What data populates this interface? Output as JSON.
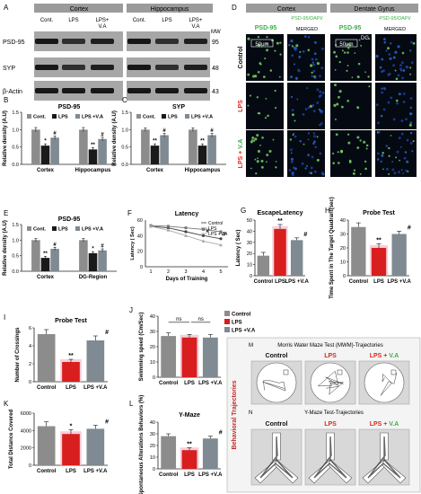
{
  "colors": {
    "control": "#8c8c8c",
    "lps": "#d81e1e",
    "lpsva": "#7f8a92",
    "dark": "#1a1a1a",
    "green": "#3fae49",
    "red": "#e0251b",
    "blot_bg": "#a7a7a7",
    "panelD_bg": "#050a12",
    "mwm_panel": "#d8d8d8"
  },
  "panelA": {
    "letter": "A",
    "groups": [
      "Cortex",
      "Hippocampus"
    ],
    "lanes": [
      "Cont.",
      "LPS",
      "LPS+\nV.A",
      "Cont.",
      "LPS",
      "LPS+\nV.A"
    ],
    "mw_label": "MW",
    "rows": [
      {
        "name": "PSD-95",
        "mw": "95"
      },
      {
        "name": "SYP",
        "mw": "48"
      },
      {
        "name": "β-Actin",
        "mw": "43"
      }
    ]
  },
  "panelD": {
    "letter": "D",
    "groups": [
      "Cortex",
      "Dentate Gyrus"
    ],
    "col_labels": [
      "PSD-95",
      "PSD-95/DAPI/",
      "MERGED"
    ],
    "row_labels": [
      "Control",
      "LPS",
      "LPS + V.A"
    ],
    "scale": "50μm",
    "dg_tag": "DG"
  },
  "charts": [
    {
      "id": "B",
      "letter": "B",
      "chart_data": {
        "type": "bar",
        "title": "PSD-95",
        "ylabel": "Relative density (A.U)",
        "ylim": [
          0,
          1.5
        ],
        "yticks": [
          "0.0",
          "0.5",
          "1.0",
          "1.5"
        ],
        "categories": [
          "Cortex",
          "Hippocampus"
        ],
        "legend": [
          "Cont.",
          "LPS",
          "LPS +V.A"
        ],
        "series": [
          {
            "name": "Cont.",
            "values": [
              1.0,
              1.0
            ],
            "err": [
              0.06,
              0.06
            ]
          },
          {
            "name": "LPS",
            "values": [
              0.54,
              0.43
            ],
            "err": [
              0.05,
              0.05
            ]
          },
          {
            "name": "LPS +V.A",
            "values": [
              0.77,
              0.73
            ],
            "err": [
              0.05,
              0.05
            ]
          }
        ],
        "marks": [
          [
            "",
            "*",
            "#"
          ],
          [
            "",
            "**",
            "#"
          ]
        ]
      }
    },
    {
      "id": "C",
      "letter": "C",
      "chart_data": {
        "type": "bar",
        "title": "SYP",
        "ylabel": "Relative density (A.U)",
        "ylim": [
          0,
          1.5
        ],
        "yticks": [
          "0.0",
          "0.5",
          "1.0",
          "1.5"
        ],
        "categories": [
          "Cortex",
          "Hippocampus"
        ],
        "legend": [
          "Cont.",
          "LPS",
          "LPS +V.A"
        ],
        "series": [
          {
            "name": "Cont.",
            "values": [
              1.0,
              1.0
            ],
            "err": [
              0.05,
              0.05
            ]
          },
          {
            "name": "LPS",
            "values": [
              0.54,
              0.54
            ],
            "err": [
              0.05,
              0.05
            ]
          },
          {
            "name": "LPS +V.A",
            "values": [
              0.84,
              0.84
            ],
            "err": [
              0.05,
              0.05
            ]
          }
        ],
        "marks": [
          [
            "",
            "**",
            "#"
          ],
          [
            "",
            "**",
            "#"
          ]
        ]
      }
    },
    {
      "id": "E",
      "letter": "E",
      "chart_data": {
        "type": "bar",
        "title": "PSD-95",
        "ylabel": "Relative density (A.U)",
        "ylim": [
          0,
          1.5
        ],
        "yticks": [
          "0.0",
          "0.5",
          "1.0",
          "1.5"
        ],
        "categories": [
          "Cortex",
          "DG-Region"
        ],
        "legend": [
          "Cont.",
          "LPS",
          "LPS +V.A"
        ],
        "series": [
          {
            "name": "Cont.",
            "values": [
              1.0,
              1.0
            ],
            "err": [
              0.05,
              0.05
            ]
          },
          {
            "name": "LPS",
            "values": [
              0.43,
              0.58
            ],
            "err": [
              0.05,
              0.05
            ]
          },
          {
            "name": "LPS +V.A",
            "values": [
              0.72,
              0.67
            ],
            "err": [
              0.05,
              0.05
            ]
          }
        ],
        "marks": [
          [
            "",
            "**",
            "#"
          ],
          [
            "",
            "*",
            "#"
          ]
        ]
      }
    },
    {
      "id": "G",
      "letter": "G",
      "chart_data": {
        "type": "bar",
        "title": "EscapeLatency",
        "ylabel": "Latency ( Sec)",
        "ylim": [
          0,
          50
        ],
        "yticks": [
          "0",
          "10",
          "20",
          "30",
          "40",
          "50"
        ],
        "categories": [
          "Control",
          "LPS",
          "LPS +V.A"
        ],
        "values": [
          18,
          42,
          32
        ],
        "err": [
          3,
          4,
          2
        ],
        "marks": [
          "",
          "**",
          "#"
        ]
      }
    },
    {
      "id": "H",
      "letter": "H",
      "chart_data": {
        "type": "bar",
        "title": "Probe Test",
        "ylabel": "Time Spent in The Target Quadrant(sec)",
        "ylim": [
          0,
          40
        ],
        "yticks": [
          "0",
          "10",
          "20",
          "30",
          "40"
        ],
        "categories": [
          "Control",
          "LPS",
          "LPS +V.A"
        ],
        "values": [
          35,
          20,
          30
        ],
        "err": [
          3,
          3,
          2
        ],
        "marks": [
          "",
          "**",
          "#"
        ]
      }
    },
    {
      "id": "I",
      "letter": "I",
      "chart_data": {
        "type": "bar",
        "title": "Probe Test",
        "ylabel": "Number of Crossings",
        "ylim": [
          0,
          6
        ],
        "yticks": [
          "0",
          "2",
          "4",
          "6"
        ],
        "categories": [
          "Control",
          "LPS",
          "LPS +V.A"
        ],
        "values": [
          5.3,
          2.2,
          4.6
        ],
        "err": [
          0.5,
          0.3,
          0.5
        ],
        "marks": [
          "",
          "**",
          "#"
        ]
      }
    },
    {
      "id": "J",
      "letter": "J",
      "chart_data": {
        "type": "bar",
        "title": "",
        "ylabel": "Swimming speed (Cm/Sec)",
        "ylim": [
          0,
          40
        ],
        "yticks": [
          "0",
          "10",
          "20",
          "30",
          "40"
        ],
        "categories": [
          "Control",
          "LPS",
          "LPS +V.A"
        ],
        "values": [
          27,
          26,
          26
        ],
        "err": [
          2,
          2,
          2
        ],
        "legend": [
          "Control",
          "LPS",
          "LPS +V.A"
        ],
        "ns": [
          "ns",
          "ns"
        ]
      }
    },
    {
      "id": "K",
      "letter": "K",
      "chart_data": {
        "type": "bar",
        "title": "",
        "ylabel": "Total Distance Covered",
        "ylim": [
          0,
          6000
        ],
        "yticks": [
          "0",
          "2000",
          "4000",
          "6000"
        ],
        "categories": [
          "Control",
          "LPS",
          "LPS +V.A"
        ],
        "values": [
          4500,
          3600,
          4200
        ],
        "err": [
          500,
          500,
          400
        ],
        "marks": [
          "",
          "*",
          "#"
        ]
      }
    },
    {
      "id": "L",
      "letter": "L",
      "chart_data": {
        "type": "bar",
        "title": "Y-Maze",
        "ylabel": "Spontaneous Alterations Behaviors (%)",
        "ylim": [
          0,
          40
        ],
        "yticks": [
          "0",
          "10",
          "20",
          "30",
          "40"
        ],
        "categories": [
          "Control",
          "LPS",
          "LPS +V.A"
        ],
        "values": [
          28,
          16,
          26
        ],
        "err": [
          2,
          2,
          2
        ],
        "marks": [
          "",
          "**",
          "#"
        ]
      }
    }
  ],
  "panelF": {
    "letter": "F",
    "chart_data": {
      "type": "line",
      "title": "Latency",
      "xlabel": "Days of Training",
      "ylabel": "Latency ( Sec)",
      "ylim": [
        0,
        60
      ],
      "yticks": [
        "0",
        "20",
        "40",
        "60"
      ],
      "x": [
        1,
        2,
        3,
        4,
        5
      ],
      "series": [
        {
          "name": "Control",
          "values": [
            52,
            50,
            45,
            40,
            36
          ]
        },
        {
          "name": "LPS",
          "values": [
            53,
            52,
            50,
            48,
            45
          ]
        },
        {
          "name": "LPS +V.A",
          "values": [
            52,
            47,
            40,
            33,
            28
          ]
        }
      ],
      "marks": [
        "#",
        "#"
      ]
    }
  },
  "panelM": {
    "letter": "M",
    "title": "Morris Water Maze Test (MWM)-Trajectories",
    "labels": [
      "Control",
      "LPS",
      "LPS + V.A"
    ]
  },
  "panelN": {
    "letter": "N",
    "title": "Y-Maze Test-Trajectories",
    "labels": [
      "Control",
      "LPS",
      "LPS + V.A"
    ]
  },
  "side_label": "Behavioral Trajectories"
}
